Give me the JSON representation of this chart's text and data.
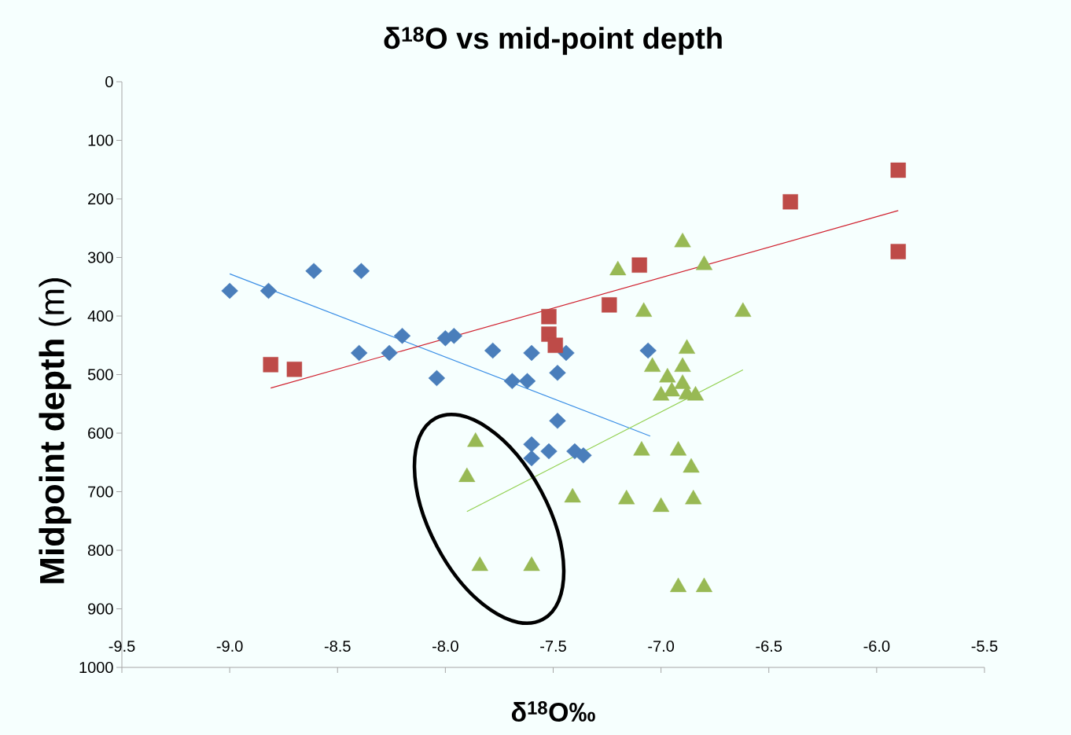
{
  "chart_data": {
    "type": "scatter",
    "title": "δ$^{18}$O  vs mid-point depth",
    "xlabel": "δ$^{18}$O‰",
    "ylabel": "**Midpoint depth** (m)",
    "xlim": [
      -9.5,
      -5.5
    ],
    "xticks": [
      -9.5,
      {
        "value": -9,
        "label": "-9.0"
      },
      -8.5,
      {
        "value": -8,
        "label": "-8.0"
      },
      -7.5,
      {
        "value": -7,
        "label": "-7.0"
      },
      -6.5,
      {
        "value": -6,
        "label": "-6.0"
      },
      -5.5
    ],
    "ylim": [
      1000,
      0
    ],
    "yticks": [
      0,
      100,
      200,
      300,
      400,
      500,
      600,
      700,
      800,
      900,
      1000
    ],
    "grid": false,
    "series": [
      {
        "color": "#4a7ebb",
        "marker": "diamond",
        "x": [
          -9.0,
          -8.82,
          -8.61,
          -8.39,
          -8.4,
          -8.26,
          -8.2,
          -8.04,
          -8.0,
          -7.96,
          -7.78,
          -7.69,
          -7.62,
          -7.6,
          -7.48,
          -7.44,
          -7.48,
          -7.06,
          -7.6,
          -7.6,
          -7.52,
          -7.4,
          -7.36
        ],
        "values": [
          357,
          357,
          323,
          323,
          463,
          463,
          434,
          506,
          438,
          434,
          459,
          511,
          511,
          463,
          497,
          463,
          579,
          459,
          619,
          643,
          631,
          631,
          638
        ]
      },
      {
        "color": "#be4b48",
        "marker": "square",
        "x": [
          -8.81,
          -8.7,
          -7.52,
          -7.52,
          -7.49,
          -7.26,
          -7.24,
          -7.1,
          -6.4,
          -5.9,
          -5.9
        ],
        "values": [
          483,
          491,
          401,
          431,
          450,
          null,
          381,
          313,
          205,
          151,
          290
        ]
      },
      {
        "color": "#98b954",
        "marker": "triangle",
        "x": [
          -6.9,
          -7.2,
          -6.8,
          -7.08,
          -6.62,
          -6.88,
          -7.04,
          -6.9,
          -6.97,
          -6.9,
          -7.0,
          -6.95,
          -6.88,
          -6.84,
          -7.09,
          -6.92,
          -6.86,
          -7.16,
          -7.0,
          -6.85,
          -6.92,
          -6.8,
          -7.41,
          -7.86,
          -7.9,
          -7.84,
          -7.6
        ],
        "values": [
          274,
          322,
          313,
          393,
          393,
          456,
          487,
          487,
          505,
          516,
          536,
          529,
          534,
          536,
          630,
          630,
          659,
          713,
          726,
          713,
          863,
          863,
          710,
          615,
          675,
          827,
          827
        ]
      },
      {
        "type": "line",
        "color": "#3a8ee6",
        "marker": "none",
        "line_style": "solid",
        "x": [
          -9.0,
          -7.05
        ],
        "values": [
          328,
          605
        ]
      },
      {
        "type": "line",
        "color": "#d0202e",
        "marker": "none",
        "line_style": "solid",
        "x": [
          -8.81,
          -5.9
        ],
        "values": [
          523,
          220
        ]
      },
      {
        "type": "line",
        "color": "#92d050",
        "marker": "none",
        "line_style": "solid",
        "x": [
          -7.9,
          -6.62
        ],
        "values": [
          734,
          492
        ]
      }
    ]
  }
}
